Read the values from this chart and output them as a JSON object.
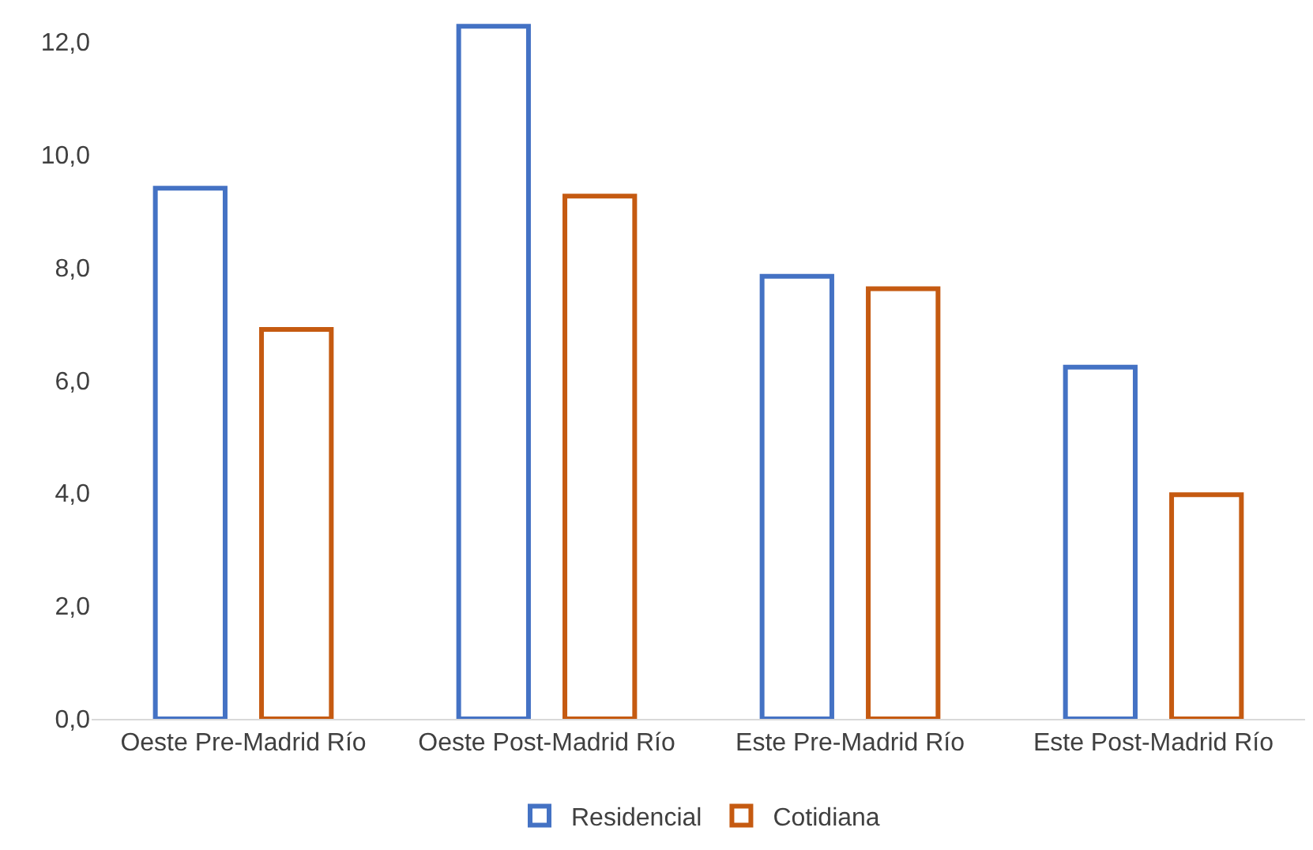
{
  "chart_data": {
    "type": "bar",
    "categories": [
      "Oeste Pre-Madrid Río",
      "Oeste Post-Madrid Río",
      "Este Pre-Madrid Río",
      "Este Post-Madrid Río"
    ],
    "series": [
      {
        "name": "Residencial",
        "color": "#4472c4",
        "values": [
          9.4,
          12.27,
          7.84,
          6.23
        ]
      },
      {
        "name": "Cotidiana",
        "color": "#c55a11",
        "values": [
          6.9,
          9.26,
          7.62,
          3.97
        ]
      }
    ],
    "ylim": [
      0,
      12.4
    ],
    "yticks": [
      {
        "value": 0,
        "label": "0,0"
      },
      {
        "value": 2,
        "label": "2,0"
      },
      {
        "value": 4,
        "label": "4,0"
      },
      {
        "value": 6,
        "label": "6,0"
      },
      {
        "value": 8,
        "label": "8,0"
      },
      {
        "value": 10,
        "label": "10,0"
      },
      {
        "value": 12,
        "label": "12,0"
      }
    ],
    "legend": "bottom"
  }
}
